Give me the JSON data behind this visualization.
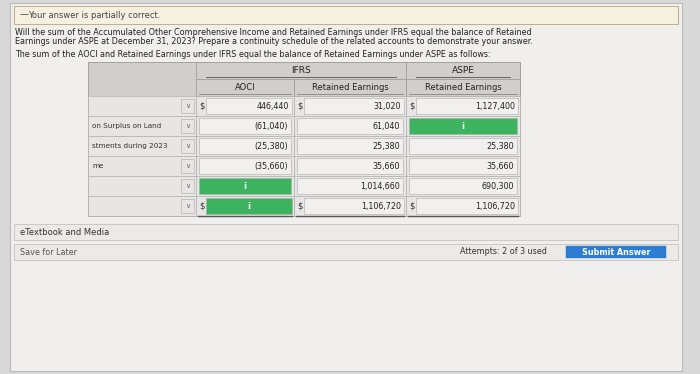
{
  "page_bg": "#d8d8d8",
  "card_bg": "#f0efee",
  "banner_bg": "#f5f0e8",
  "banner_ec": "#c8c8c8",
  "banner_text": "Your answer is partially correct.",
  "q_line1": "Will the sum of the Accumulated Other Comprehensive Income and Retained Earnings under IFRS equal the balance of Retained",
  "q_line2": "Earnings under ASPE at December 31, 2023? Prepare a continuity schedule of the related accounts to demonstrate your answer.",
  "answer_line": "The sum of the AOCI and Retained Earnings under IFRS equal the balance of Retained Earnings under ASPE as follows:",
  "header_ifrs": "IFRS",
  "header_aspe": "ASPE",
  "col_aoci": "AOCI",
  "col_re_ifrs": "Retained Earnings",
  "col_re_aspe": "Retained Earnings",
  "table_bg": "#d0cfce",
  "header_bg": "#d0cfce",
  "subhdr_bg": "#d0cfce",
  "cell_bg": "#e8e6e4",
  "input_bg": "#f2f0ee",
  "row_labels": [
    "",
    "on Surplus on Land",
    "stments during 2023",
    "me",
    "",
    ""
  ],
  "aoci_values": [
    "446,440",
    "(61,040)",
    "(25,380)",
    "(35,660)",
    "",
    ""
  ],
  "re_ifrs_values": [
    "31,020",
    "61,040",
    "25,380",
    "35,660",
    "1,014,660",
    "1,106,720"
  ],
  "re_aspe_values": [
    "1,127,400",
    "",
    "25,380",
    "35,660",
    "690,300",
    "1,106,720"
  ],
  "aoci_dollar_rows": [
    0,
    5
  ],
  "re_ifrs_dollar_rows": [
    0,
    5
  ],
  "re_aspe_dollar_rows": [
    0,
    5
  ],
  "green_aoci_rows": [
    4,
    5
  ],
  "green_re_aspe_rows": [
    1
  ],
  "etextbook": "eTextbook and Media",
  "save_later": "Save for Later",
  "attempts": "Attempts: 2 of 3 used",
  "submit": "Submit Answer",
  "submit_bg": "#2d7dd2",
  "footer_bg": "#e8e6e4"
}
